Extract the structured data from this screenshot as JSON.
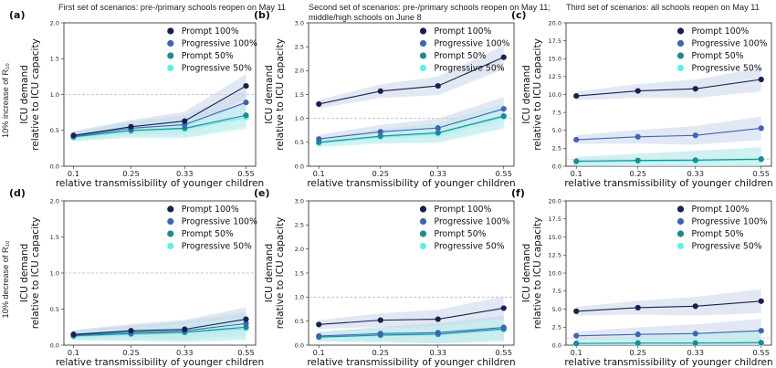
{
  "column_titles": [
    "First set of scenarios: pre-/primary schools reopen on May 11",
    "Second set of scenarios: pre-/primary schools reopen on May 11;",
    "middle/high schools on June 8",
    "Third set of scenarios: all schools reopen on May 11"
  ],
  "row_labels": [
    "10% increase of R₁₀",
    "10% decrease of R₁₀"
  ],
  "colors": {
    "prompt_100": "#1b1f4e",
    "progressive_100": "#3f64b4",
    "prompt_50": "#1f8a96",
    "progressive_50": "#5ff0e4",
    "reference_line": "#bbbbbb"
  },
  "chart_data": [
    {
      "type": "line",
      "panel": "(a)",
      "xlabel": "relative transmissibility of younger children",
      "ylabel": "ICU demand relative to ICU capacity",
      "x": [
        "0.1",
        "0.25",
        "0.33",
        "0.55"
      ],
      "ylim": [
        0,
        2.0
      ],
      "yticks": [
        "0.0",
        "0.5",
        "1.0",
        "1.5",
        "2.0"
      ],
      "reference_y": 1.0,
      "series": [
        {
          "name": "Prompt 100%",
          "values": [
            0.43,
            0.55,
            0.63,
            1.12
          ]
        },
        {
          "name": "Progressive 100%",
          "values": [
            0.42,
            0.53,
            0.58,
            0.89
          ]
        },
        {
          "name": "Prompt 50%",
          "values": [
            0.41,
            0.5,
            0.53,
            0.71
          ]
        },
        {
          "name": "Progressive 50%",
          "values": [
            0.4,
            0.49,
            0.52,
            0.68
          ]
        }
      ],
      "legend": "upper left"
    },
    {
      "type": "line",
      "panel": "(b)",
      "xlabel": "relative transmissibility of younger children",
      "ylabel": "ICU demand relative to ICU capacity",
      "x": [
        "0.1",
        "0.25",
        "0.33",
        "0.55"
      ],
      "ylim": [
        0,
        3.0
      ],
      "yticks": [
        "0.0",
        "0.5",
        "1.0",
        "1.5",
        "2.0",
        "2.5",
        "3.0"
      ],
      "reference_y": 1.0,
      "series": [
        {
          "name": "Prompt 100%",
          "values": [
            1.3,
            1.57,
            1.68,
            2.28
          ]
        },
        {
          "name": "Progressive 100%",
          "values": [
            0.57,
            0.72,
            0.8,
            1.2
          ]
        },
        {
          "name": "Prompt 50%",
          "values": [
            0.5,
            0.63,
            0.7,
            1.05
          ]
        },
        {
          "name": "Progressive 50%",
          "values": [
            0.48,
            0.61,
            0.68,
            1.03
          ]
        }
      ],
      "legend": "upper left"
    },
    {
      "type": "line",
      "panel": "(c)",
      "xlabel": "relative transmissibility of younger children",
      "ylabel": "ICU demand relative to ICU capacity",
      "x": [
        "0.1",
        "0.25",
        "0.33",
        "0.55"
      ],
      "ylim": [
        0,
        20.0
      ],
      "yticks": [
        "0.0",
        "2.5",
        "5.0",
        "7.5",
        "10.0",
        "12.5",
        "15.0",
        "17.5",
        "20.0"
      ],
      "reference_y": 1.0,
      "series": [
        {
          "name": "Prompt 100%",
          "values": [
            9.8,
            10.5,
            10.8,
            12.1
          ]
        },
        {
          "name": "Progressive 100%",
          "values": [
            3.7,
            4.1,
            4.3,
            5.3
          ]
        },
        {
          "name": "Prompt 50%",
          "values": [
            0.7,
            0.8,
            0.85,
            1.0
          ]
        },
        {
          "name": "Progressive 50%",
          "values": [
            0.6,
            0.7,
            0.75,
            0.9
          ]
        }
      ],
      "legend": "upper left"
    },
    {
      "type": "line",
      "panel": "(d)",
      "xlabel": "relative transmissibility of younger children",
      "ylabel": "ICU demand relative to ICU capacity",
      "x": [
        "0.1",
        "0.25",
        "0.33",
        "0.55"
      ],
      "ylim": [
        0,
        2.0
      ],
      "yticks": [
        "0.0",
        "0.5",
        "1.0",
        "1.5",
        "2.0"
      ],
      "reference_y": 1.0,
      "series": [
        {
          "name": "Prompt 100%",
          "values": [
            0.15,
            0.2,
            0.22,
            0.36
          ]
        },
        {
          "name": "Progressive 100%",
          "values": [
            0.14,
            0.18,
            0.2,
            0.3
          ]
        },
        {
          "name": "Prompt 50%",
          "values": [
            0.13,
            0.16,
            0.18,
            0.25
          ]
        },
        {
          "name": "Progressive 50%",
          "values": [
            0.12,
            0.15,
            0.17,
            0.23
          ]
        }
      ],
      "legend": "upper left"
    },
    {
      "type": "line",
      "panel": "(e)",
      "xlabel": "relative transmissibility of younger children",
      "ylabel": "ICU demand relative to ICU capacity",
      "x": [
        "0.1",
        "0.25",
        "0.33",
        "0.55"
      ],
      "ylim": [
        0,
        3.0
      ],
      "yticks": [
        "0.0",
        "0.5",
        "1.0",
        "1.5",
        "2.0",
        "2.5",
        "3.0"
      ],
      "reference_y": 1.0,
      "series": [
        {
          "name": "Prompt 100%",
          "values": [
            0.43,
            0.52,
            0.54,
            0.77
          ]
        },
        {
          "name": "Progressive 100%",
          "values": [
            0.19,
            0.24,
            0.26,
            0.37
          ]
        },
        {
          "name": "Prompt 50%",
          "values": [
            0.17,
            0.21,
            0.23,
            0.34
          ]
        },
        {
          "name": "Progressive 50%",
          "values": [
            0.16,
            0.2,
            0.22,
            0.32
          ]
        }
      ],
      "legend": "upper left"
    },
    {
      "type": "line",
      "panel": "(f)",
      "xlabel": "relative transmissibility of younger children",
      "ylabel": "ICU demand relative to ICU capacity",
      "x": [
        "0.1",
        "0.25",
        "0.33",
        "0.55"
      ],
      "ylim": [
        0,
        20.0
      ],
      "yticks": [
        "0.0",
        "2.5",
        "5.0",
        "7.5",
        "10.0",
        "12.5",
        "15.0",
        "17.5",
        "20.0"
      ],
      "reference_y": 1.0,
      "series": [
        {
          "name": "Prompt 100%",
          "values": [
            4.7,
            5.2,
            5.4,
            6.1
          ]
        },
        {
          "name": "Progressive 100%",
          "values": [
            1.3,
            1.5,
            1.6,
            2.0
          ]
        },
        {
          "name": "Prompt 50%",
          "values": [
            0.25,
            0.3,
            0.3,
            0.35
          ]
        },
        {
          "name": "Progressive 50%",
          "values": [
            0.2,
            0.25,
            0.25,
            0.3
          ]
        }
      ],
      "legend": "upper left"
    }
  ]
}
